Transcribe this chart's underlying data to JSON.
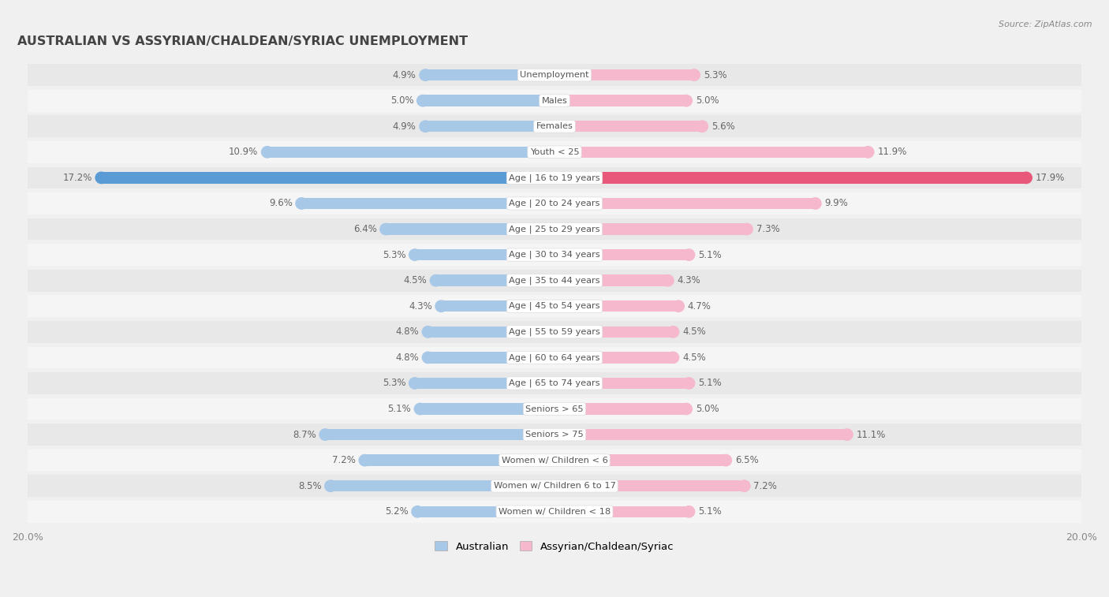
{
  "title": "AUSTRALIAN VS ASSYRIAN/CHALDEAN/SYRIAC UNEMPLOYMENT",
  "source": "Source: ZipAtlas.com",
  "categories": [
    "Unemployment",
    "Males",
    "Females",
    "Youth < 25",
    "Age | 16 to 19 years",
    "Age | 20 to 24 years",
    "Age | 25 to 29 years",
    "Age | 30 to 34 years",
    "Age | 35 to 44 years",
    "Age | 45 to 54 years",
    "Age | 55 to 59 years",
    "Age | 60 to 64 years",
    "Age | 65 to 74 years",
    "Seniors > 65",
    "Seniors > 75",
    "Women w/ Children < 6",
    "Women w/ Children 6 to 17",
    "Women w/ Children < 18"
  ],
  "left_values": [
    4.9,
    5.0,
    4.9,
    10.9,
    17.2,
    9.6,
    6.4,
    5.3,
    4.5,
    4.3,
    4.8,
    4.8,
    5.3,
    5.1,
    8.7,
    7.2,
    8.5,
    5.2
  ],
  "right_values": [
    5.3,
    5.0,
    5.6,
    11.9,
    17.9,
    9.9,
    7.3,
    5.1,
    4.3,
    4.7,
    4.5,
    4.5,
    5.1,
    5.0,
    11.1,
    6.5,
    7.2,
    5.1
  ],
  "left_color_normal": "#a8c8e8",
  "left_color_highlight": "#5b9bd5",
  "right_color_normal": "#f5b8cc",
  "right_color_highlight": "#e8587a",
  "bg_color": "#f0f0f0",
  "row_color_even": "#e8e8e8",
  "row_color_odd": "#f5f5f5",
  "label_text_color": "#555555",
  "value_text_color": "#666666",
  "title_color": "#444444",
  "source_color": "#888888",
  "max_val": 20.0,
  "legend_left": "Australian",
  "legend_right": "Assyrian/Chaldean/Syriac",
  "highlight_row": 4,
  "xtick_labels": [
    "20.0%",
    "20.0%"
  ]
}
